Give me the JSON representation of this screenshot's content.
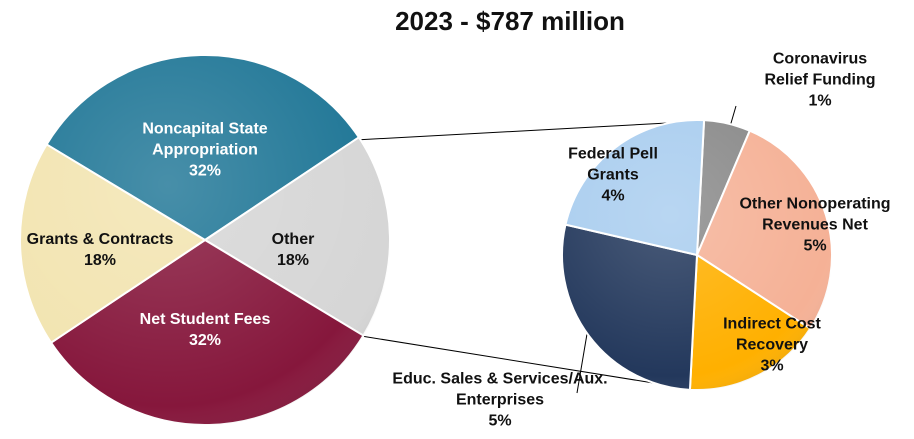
{
  "chart_data": [
    {
      "type": "pie",
      "title": "2023 - $787 million",
      "categories": [
        "Noncapital State Appropriation",
        "Other",
        "Net Student Fees",
        "Grants & Contracts"
      ],
      "values": [
        32,
        18,
        32,
        18
      ],
      "value_labels": [
        "32%",
        "18%",
        "32%",
        "18%"
      ],
      "colors": [
        "#1f7696",
        "#d6d6d6",
        "#86173c",
        "#f2e4b0"
      ]
    },
    {
      "type": "pie",
      "categories": [
        "Coronavirus Relief Funding",
        "Other Nonoperating Revenues Net",
        "Indirect Cost Recovery",
        "Educ. Sales & Services/Aux. Enterprises",
        "Federal Pell Grants"
      ],
      "values": [
        1,
        5,
        3,
        5,
        4
      ],
      "value_labels": [
        "1%",
        "5%",
        "3%",
        "5%",
        "4%"
      ],
      "colors": [
        "#8a8a8a",
        "#f5b196",
        "#ffb000",
        "#23385c",
        "#a9cdef"
      ]
    }
  ]
}
